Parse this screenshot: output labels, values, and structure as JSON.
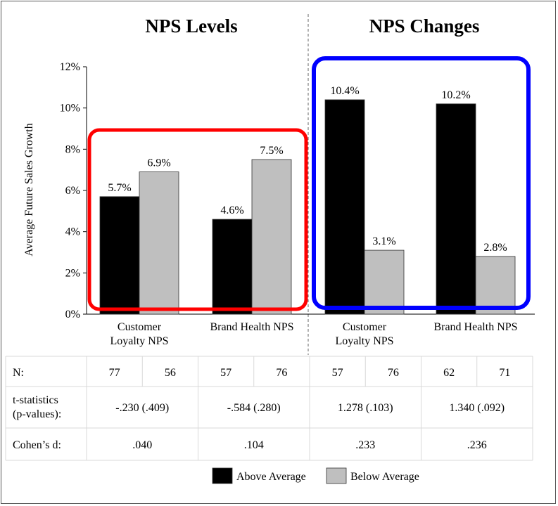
{
  "chart_data": {
    "type": "bar",
    "panels": [
      {
        "title": "NPS Levels",
        "categories": [
          [
            "Customer",
            "Loyalty NPS"
          ],
          [
            "Brand Health NPS"
          ]
        ],
        "series": [
          {
            "name": "Above Average",
            "values": [
              5.7,
              4.6
            ],
            "labels": [
              "5.7%",
              "4.6%"
            ]
          },
          {
            "name": "Below Average",
            "values": [
              6.9,
              7.5
            ],
            "labels": [
              "6.9%",
              "7.5%"
            ]
          }
        ]
      },
      {
        "title": "NPS Changes",
        "categories": [
          [
            "Customer",
            "Loyalty NPS"
          ],
          [
            "Brand Health NPS"
          ]
        ],
        "series": [
          {
            "name": "Above Average",
            "values": [
              10.4,
              10.2
            ],
            "labels": [
              "10.4%",
              "10.2%"
            ]
          },
          {
            "name": "Below Average",
            "values": [
              3.1,
              2.8
            ],
            "labels": [
              "3.1%",
              "2.8%"
            ]
          }
        ]
      }
    ],
    "ylabel": "Average Future Sales Growth",
    "ylim": [
      0,
      12
    ],
    "yticks": [
      "0%",
      "2%",
      "4%",
      "6%",
      "8%",
      "10%",
      "12%"
    ],
    "grid": false,
    "legend_placement": "bottom-center",
    "colors": {
      "above": "#000000",
      "below": "#bfbfbf",
      "highlight_levels": "#ff0000",
      "highlight_changes": "#0000ff"
    }
  },
  "table": {
    "rows": [
      {
        "label": "N:",
        "cells": [
          "77",
          "56",
          "57",
          "76",
          "57",
          "76",
          "62",
          "71"
        ]
      },
      {
        "label": [
          "t-statistics",
          "(p-values):"
        ],
        "cells": [
          "-.230 (.409)",
          "-.584 (.280)",
          "1.278 (.103)",
          "1.340 (.092)"
        ]
      },
      {
        "label": "Cohen’s d:",
        "cells": [
          ".040",
          ".104",
          ".233",
          ".236"
        ]
      }
    ]
  },
  "legend": [
    {
      "label": "Above Average",
      "color": "#000000"
    },
    {
      "label": "Below Average",
      "color": "#bfbfbf"
    }
  ]
}
